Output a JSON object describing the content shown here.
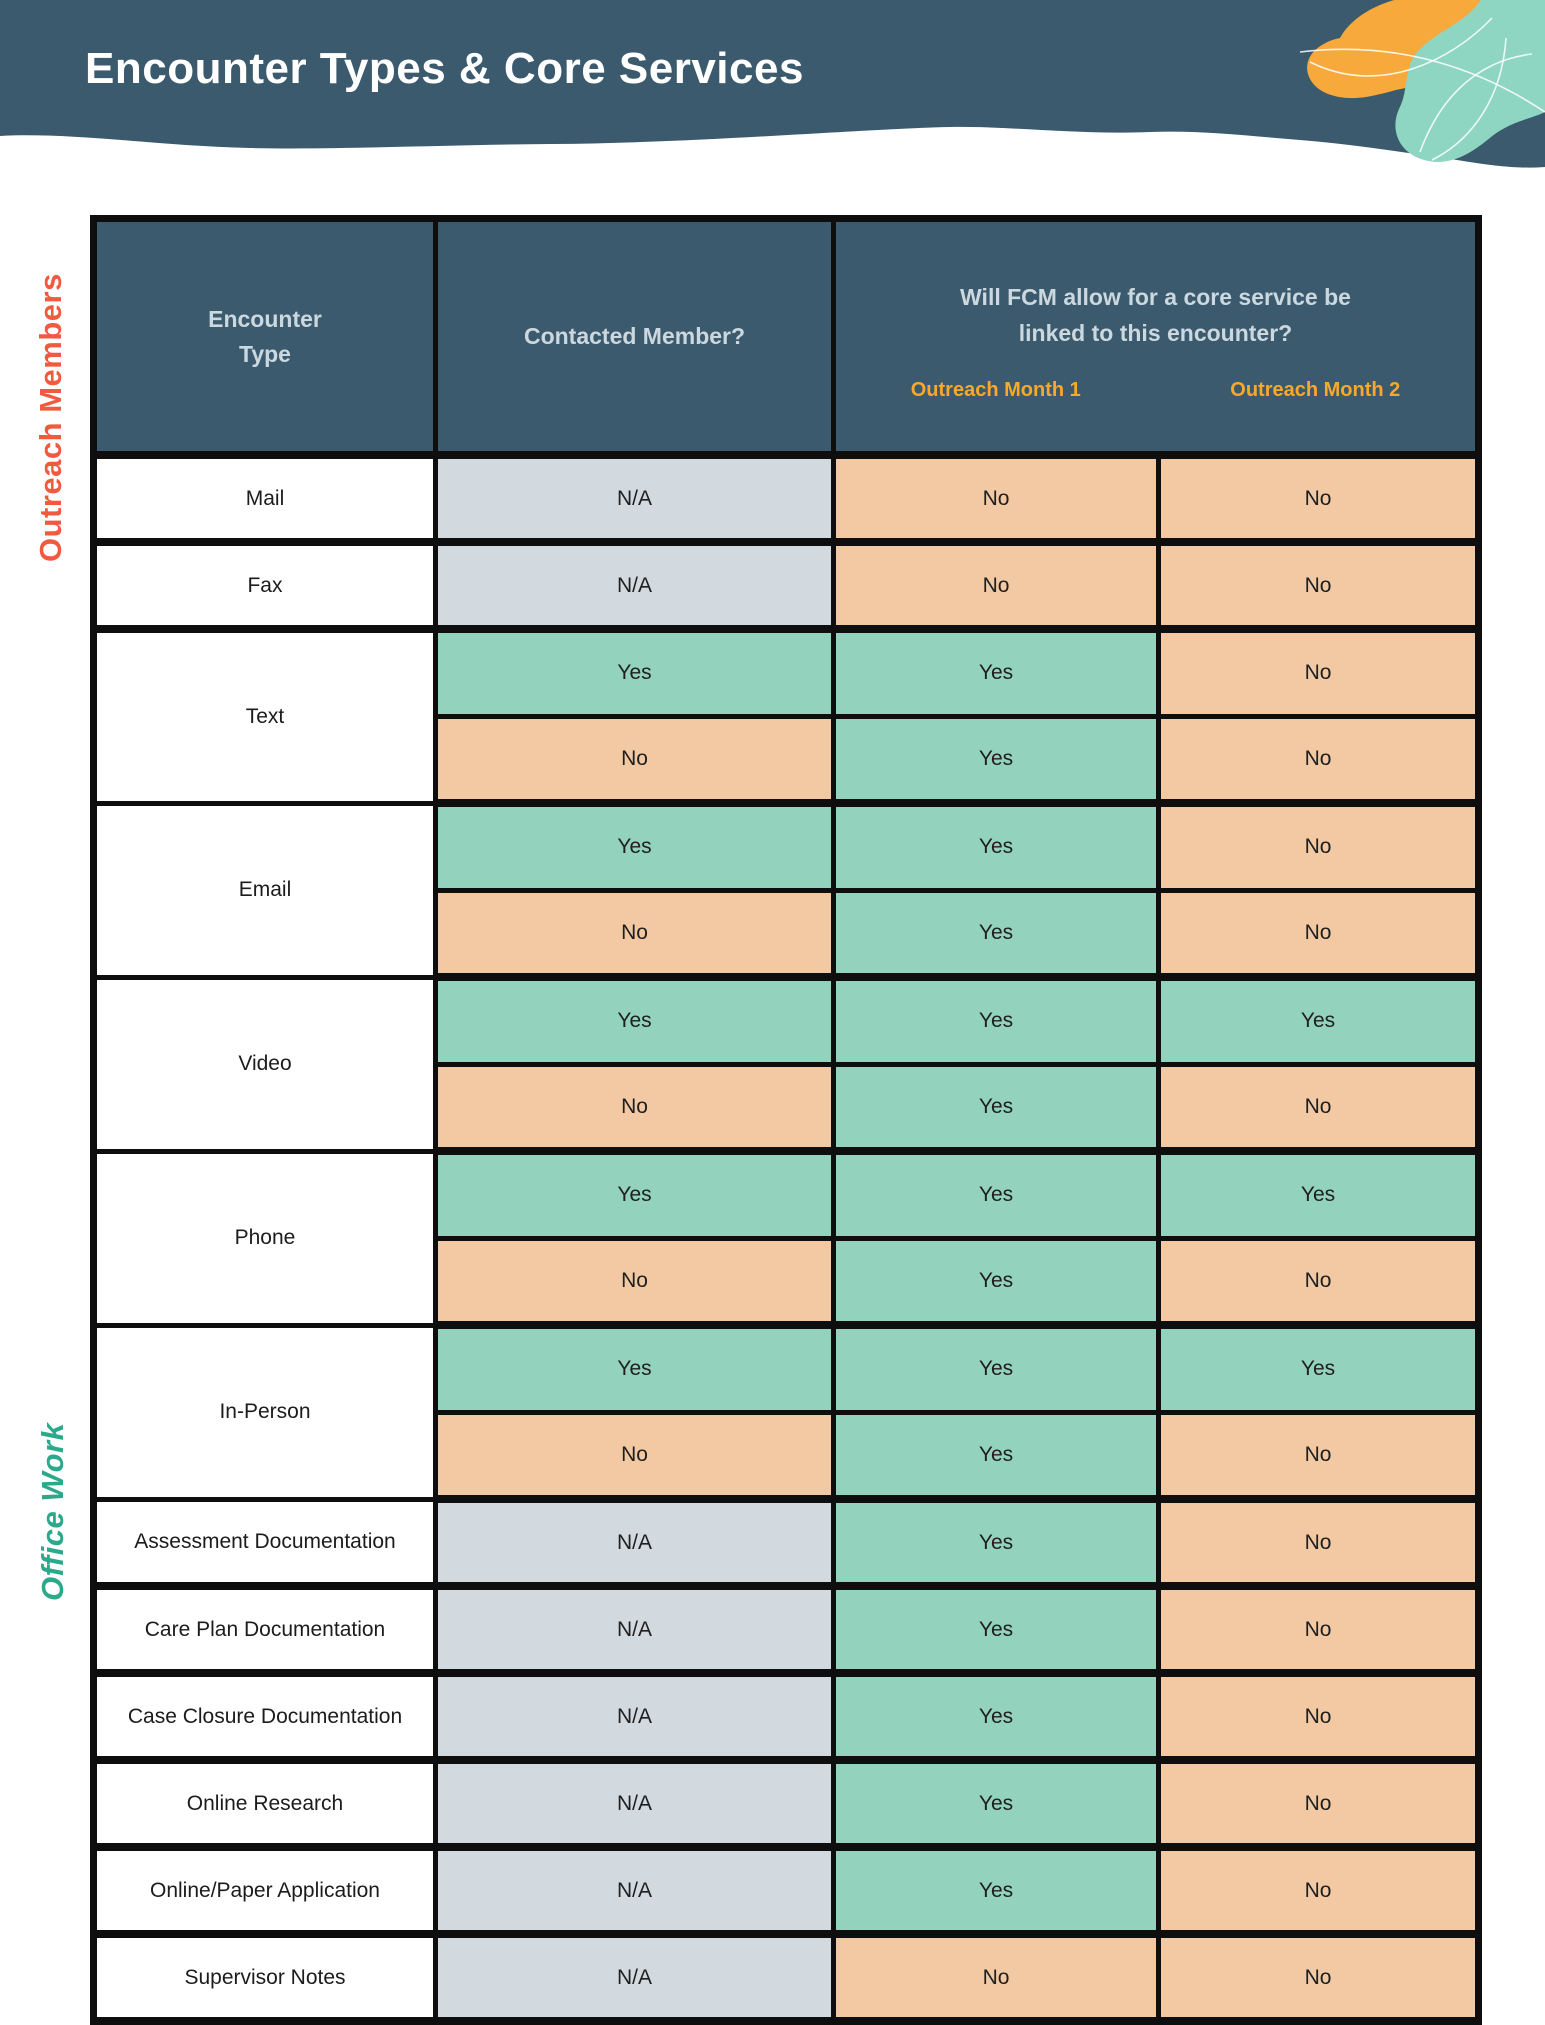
{
  "page": {
    "title": "Encounter Types & Core Services"
  },
  "theme": {
    "band_color": "#3b5a6d",
    "border_color": "#0e0e0e",
    "yes_color": "#93d2bc",
    "no_color": "#f2c9a2",
    "na_color": "#d2dae0",
    "month_label_color": "#f9a82b",
    "outreach_label_color": "#f05b40",
    "office_label_color": "#2ba98b",
    "blob_orange": "#f8a93c",
    "blob_teal": "#8ed6c2"
  },
  "side_labels": {
    "outreach": "Outreach Members",
    "office": "Office Work"
  },
  "table": {
    "header": {
      "encounter_type": "Encounter\nType",
      "contacted": "Contacted Member?",
      "question": "Will FCM allow for a core service be\nlinked to this encounter?",
      "month1": "Outreach Month 1",
      "month2": "Outreach Month 2"
    },
    "groups": [
      {
        "label": "Mail",
        "rows": [
          [
            "N/A",
            "No",
            "No"
          ]
        ]
      },
      {
        "label": "Fax",
        "rows": [
          [
            "N/A",
            "No",
            "No"
          ]
        ]
      },
      {
        "label": "Text",
        "rows": [
          [
            "Yes",
            "Yes",
            "No"
          ],
          [
            "No",
            "Yes",
            "No"
          ]
        ]
      },
      {
        "label": "Email",
        "rows": [
          [
            "Yes",
            "Yes",
            "No"
          ],
          [
            "No",
            "Yes",
            "No"
          ]
        ]
      },
      {
        "label": "Video",
        "rows": [
          [
            "Yes",
            "Yes",
            "Yes"
          ],
          [
            "No",
            "Yes",
            "No"
          ]
        ]
      },
      {
        "label": "Phone",
        "rows": [
          [
            "Yes",
            "Yes",
            "Yes"
          ],
          [
            "No",
            "Yes",
            "No"
          ]
        ]
      },
      {
        "label": "In-Person",
        "rows": [
          [
            "Yes",
            "Yes",
            "Yes"
          ],
          [
            "No",
            "Yes",
            "No"
          ]
        ]
      },
      {
        "label": "Assessment Documentation",
        "rows": [
          [
            "N/A",
            "Yes",
            "No"
          ]
        ]
      },
      {
        "label": "Care Plan Documentation",
        "rows": [
          [
            "N/A",
            "Yes",
            "No"
          ]
        ]
      },
      {
        "label": "Case Closure Documentation",
        "rows": [
          [
            "N/A",
            "Yes",
            "No"
          ]
        ]
      },
      {
        "label": "Online Research",
        "rows": [
          [
            "N/A",
            "Yes",
            "No"
          ]
        ]
      },
      {
        "label": "Online/Paper Application",
        "rows": [
          [
            "N/A",
            "Yes",
            "No"
          ]
        ]
      },
      {
        "label": "Supervisor Notes",
        "rows": [
          [
            "N/A",
            "No",
            "No"
          ]
        ]
      }
    ]
  }
}
